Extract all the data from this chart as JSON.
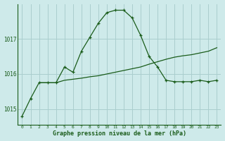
{
  "line1_x": [
    0,
    1,
    2,
    3,
    4,
    5,
    6,
    7,
    8,
    9,
    10,
    11,
    12,
    13,
    14,
    15,
    16,
    17,
    18,
    19,
    20,
    21,
    22,
    23
  ],
  "line1_y": [
    1014.8,
    1015.3,
    1015.75,
    1015.75,
    1015.75,
    1016.2,
    1016.05,
    1016.65,
    1017.05,
    1017.45,
    1017.75,
    1017.82,
    1017.82,
    1017.6,
    1017.1,
    1016.5,
    1016.2,
    1015.82,
    1015.78,
    1015.78,
    1015.78,
    1015.82,
    1015.78,
    1015.82
  ],
  "line2_x": [
    2,
    3,
    4,
    5,
    6,
    7,
    8,
    9,
    10,
    11,
    12,
    13,
    14,
    15,
    16,
    17,
    18,
    19,
    20,
    21,
    22,
    23
  ],
  "line2_y": [
    1015.75,
    1015.75,
    1015.75,
    1015.82,
    1015.85,
    1015.88,
    1015.92,
    1015.95,
    1016.0,
    1016.05,
    1016.1,
    1016.15,
    1016.2,
    1016.28,
    1016.35,
    1016.42,
    1016.48,
    1016.52,
    1016.55,
    1016.6,
    1016.65,
    1016.75
  ],
  "line_color": "#1a5c1a",
  "bg_color": "#ceeaea",
  "grid_color": "#aacece",
  "xlabel": "Graphe pression niveau de la mer (hPa)",
  "yticks": [
    1015,
    1016,
    1017
  ],
  "xticks": [
    0,
    1,
    2,
    3,
    4,
    5,
    6,
    7,
    8,
    9,
    10,
    11,
    12,
    13,
    14,
    15,
    16,
    17,
    18,
    19,
    20,
    21,
    22,
    23
  ],
  "ylim": [
    1014.55,
    1018.0
  ],
  "xlim": [
    -0.5,
    23.5
  ]
}
